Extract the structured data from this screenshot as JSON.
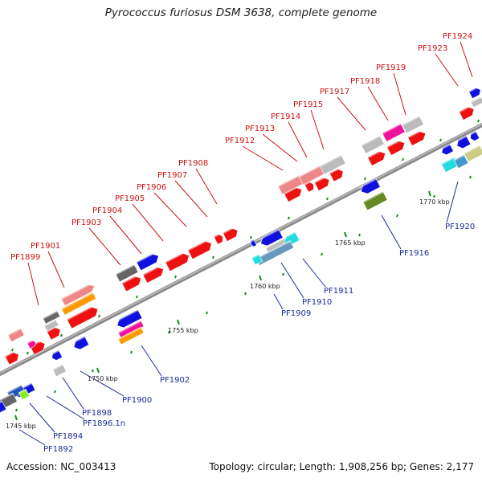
{
  "title": "Pyrococcus furiosus DSM 3638, complete genome",
  "footer": {
    "accession": "Accession: NC_003413",
    "summary": "Topology: circular; Length: 1,908,256 bp; Genes: 2,177"
  },
  "scale_ticks": [
    "1745 kbp",
    "1750 kbp",
    "1755 kbp",
    "1760 kbp",
    "1765 kbp",
    "1770 kbp"
  ],
  "genes_top": [
    "PF1899",
    "PF1901",
    "PF1903",
    "PF1904",
    "PF1905",
    "PF1906",
    "PF1907",
    "PF1908",
    "PF1912",
    "PF1913",
    "PF1914",
    "PF1915",
    "PF1917",
    "PF1918",
    "PF1919",
    "PF1923",
    "PF1924"
  ],
  "genes_bottom": [
    "PF1892",
    "PF1894",
    "PF1896.1n",
    "PF1898",
    "PF1900",
    "PF1902",
    "PF1909",
    "PF1910",
    "PF1911",
    "PF1916",
    "PF1920"
  ],
  "colors": {
    "red": "#ee1111",
    "pink": "#ee8888",
    "blue": "#1111dd",
    "gray": "#bbbbbb",
    "darkgray": "#666666",
    "orange": "#ff9900",
    "magenta": "#ee1199",
    "cyan": "#22dddd",
    "olive": "#668822",
    "khaki": "#cccc88",
    "lime": "#88ee22",
    "red_label": "#cc1111",
    "blue_label": "#1a2a99"
  }
}
